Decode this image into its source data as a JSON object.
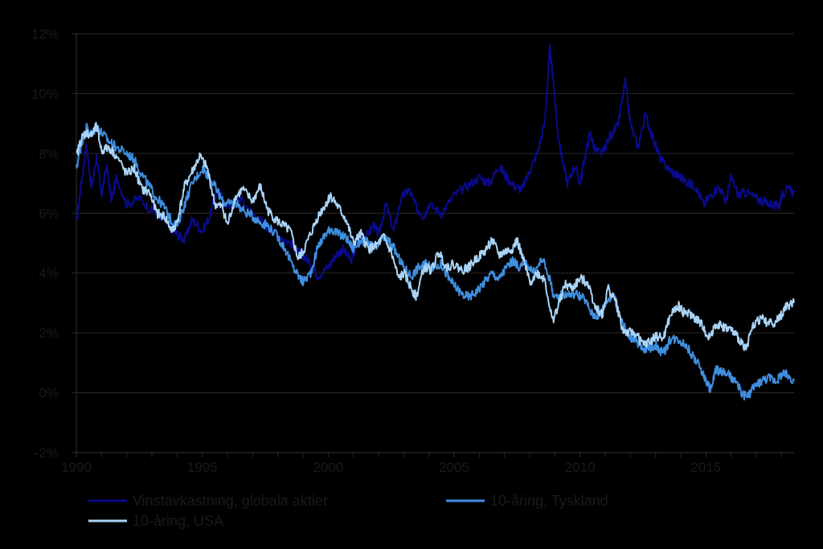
{
  "chart_data": {
    "type": "line",
    "title": "",
    "xlabel": "",
    "ylabel": "",
    "xlim": [
      1990,
      2018.5
    ],
    "ylim": [
      -2,
      12
    ],
    "grid": "horizontal",
    "legend_position": "bottom",
    "x_ticks": [
      "1990",
      "1995",
      "2000",
      "2005",
      "2010",
      "2015"
    ],
    "y_ticks": [
      "-2%",
      "0%",
      "2%",
      "4%",
      "6%",
      "8%",
      "10%",
      "12%"
    ],
    "y_tick_values": [
      -2,
      0,
      2,
      4,
      6,
      8,
      10,
      12
    ],
    "x_tick_values": [
      1990,
      1995,
      2000,
      2005,
      2010,
      2015
    ],
    "series": [
      {
        "name": "Vinstavkastning, globala aktier",
        "color": "#0a0a8c",
        "points": [
          [
            1990.0,
            5.7
          ],
          [
            1990.2,
            7.0
          ],
          [
            1990.4,
            8.3
          ],
          [
            1990.6,
            6.8
          ],
          [
            1990.8,
            7.9
          ],
          [
            1991.0,
            6.6
          ],
          [
            1991.2,
            7.6
          ],
          [
            1991.4,
            6.4
          ],
          [
            1991.6,
            7.2
          ],
          [
            1992.0,
            6.3
          ],
          [
            1992.5,
            6.5
          ],
          [
            1993.0,
            6.1
          ],
          [
            1993.5,
            5.8
          ],
          [
            1993.8,
            5.5
          ],
          [
            1994.0,
            5.3
          ],
          [
            1994.3,
            5.1
          ],
          [
            1994.6,
            5.8
          ],
          [
            1995.0,
            5.4
          ],
          [
            1995.3,
            5.9
          ],
          [
            1995.6,
            6.8
          ],
          [
            1996.0,
            6.2
          ],
          [
            1996.5,
            6.5
          ],
          [
            1997.0,
            6.0
          ],
          [
            1997.5,
            5.6
          ],
          [
            1998.0,
            5.3
          ],
          [
            1998.5,
            5.0
          ],
          [
            1998.8,
            4.7
          ],
          [
            1999.0,
            4.6
          ],
          [
            1999.3,
            4.3
          ],
          [
            1999.6,
            3.9
          ],
          [
            2000.0,
            4.2
          ],
          [
            2000.3,
            4.6
          ],
          [
            2000.6,
            4.8
          ],
          [
            2000.9,
            4.4
          ],
          [
            2001.2,
            5.0
          ],
          [
            2001.5,
            5.2
          ],
          [
            2001.8,
            5.6
          ],
          [
            2002.0,
            5.3
          ],
          [
            2002.3,
            6.3
          ],
          [
            2002.6,
            5.4
          ],
          [
            2002.9,
            6.5
          ],
          [
            2003.2,
            6.8
          ],
          [
            2003.5,
            6.2
          ],
          [
            2003.8,
            5.9
          ],
          [
            2004.0,
            6.3
          ],
          [
            2004.5,
            6.0
          ],
          [
            2005.0,
            6.6
          ],
          [
            2005.5,
            6.9
          ],
          [
            2006.0,
            7.2
          ],
          [
            2006.4,
            7.0
          ],
          [
            2006.8,
            7.6
          ],
          [
            2007.0,
            7.3
          ],
          [
            2007.4,
            6.9
          ],
          [
            2007.7,
            6.8
          ],
          [
            2008.0,
            7.4
          ],
          [
            2008.3,
            8.0
          ],
          [
            2008.6,
            9.0
          ],
          [
            2008.8,
            11.5
          ],
          [
            2008.95,
            10.4
          ],
          [
            2009.1,
            8.8
          ],
          [
            2009.3,
            7.8
          ],
          [
            2009.5,
            7.0
          ],
          [
            2009.8,
            7.6
          ],
          [
            2010.0,
            7.0
          ],
          [
            2010.2,
            7.9
          ],
          [
            2010.4,
            8.7
          ],
          [
            2010.6,
            8.1
          ],
          [
            2010.9,
            8.0
          ],
          [
            2011.2,
            8.6
          ],
          [
            2011.5,
            8.9
          ],
          [
            2011.8,
            10.4
          ],
          [
            2012.0,
            9.0
          ],
          [
            2012.3,
            8.2
          ],
          [
            2012.6,
            9.3
          ],
          [
            2012.9,
            8.5
          ],
          [
            2013.2,
            7.8
          ],
          [
            2013.5,
            7.5
          ],
          [
            2013.8,
            7.3
          ],
          [
            2014.0,
            7.2
          ],
          [
            2014.3,
            7.0
          ],
          [
            2014.6,
            6.9
          ],
          [
            2014.9,
            6.3
          ],
          [
            2015.2,
            6.6
          ],
          [
            2015.5,
            6.9
          ],
          [
            2015.8,
            6.4
          ],
          [
            2016.0,
            7.2
          ],
          [
            2016.3,
            6.6
          ],
          [
            2016.6,
            6.7
          ],
          [
            2017.0,
            6.5
          ],
          [
            2017.3,
            6.4
          ],
          [
            2017.6,
            6.3
          ],
          [
            2017.9,
            6.2
          ],
          [
            2018.0,
            6.6
          ],
          [
            2018.2,
            6.8
          ],
          [
            2018.5,
            6.7
          ]
        ]
      },
      {
        "name": "10-åring, Tyskland",
        "color": "#3f8fe0",
        "points": [
          [
            1990.0,
            7.5
          ],
          [
            1990.2,
            8.3
          ],
          [
            1990.4,
            8.9
          ],
          [
            1990.6,
            8.6
          ],
          [
            1990.8,
            8.9
          ],
          [
            1991.0,
            8.7
          ],
          [
            1991.3,
            8.4
          ],
          [
            1991.6,
            8.2
          ],
          [
            1992.0,
            8.0
          ],
          [
            1992.3,
            7.8
          ],
          [
            1992.6,
            7.3
          ],
          [
            1992.9,
            6.9
          ],
          [
            1993.2,
            6.5
          ],
          [
            1993.5,
            6.2
          ],
          [
            1993.8,
            5.7
          ],
          [
            1994.0,
            5.6
          ],
          [
            1994.3,
            6.3
          ],
          [
            1994.6,
            7.0
          ],
          [
            1995.0,
            7.5
          ],
          [
            1995.2,
            7.3
          ],
          [
            1995.5,
            6.9
          ],
          [
            1995.8,
            6.4
          ],
          [
            1996.0,
            6.3
          ],
          [
            1996.3,
            6.4
          ],
          [
            1996.6,
            6.1
          ],
          [
            1997.0,
            5.9
          ],
          [
            1997.3,
            5.7
          ],
          [
            1997.6,
            5.6
          ],
          [
            1998.0,
            5.2
          ],
          [
            1998.3,
            4.8
          ],
          [
            1998.6,
            4.2
          ],
          [
            1998.9,
            3.8
          ],
          [
            1999.0,
            3.7
          ],
          [
            1999.3,
            4.0
          ],
          [
            1999.6,
            4.9
          ],
          [
            1999.9,
            5.3
          ],
          [
            2000.1,
            5.5
          ],
          [
            2000.4,
            5.3
          ],
          [
            2000.7,
            5.2
          ],
          [
            2001.0,
            4.8
          ],
          [
            2001.3,
            5.1
          ],
          [
            2001.6,
            5.0
          ],
          [
            2001.9,
            4.8
          ],
          [
            2002.2,
            5.2
          ],
          [
            2002.5,
            5.0
          ],
          [
            2002.8,
            4.5
          ],
          [
            2003.0,
            4.2
          ],
          [
            2003.3,
            3.9
          ],
          [
            2003.6,
            4.2
          ],
          [
            2003.9,
            4.3
          ],
          [
            2004.2,
            4.2
          ],
          [
            2004.5,
            4.3
          ],
          [
            2004.8,
            3.8
          ],
          [
            2005.0,
            3.6
          ],
          [
            2005.3,
            3.3
          ],
          [
            2005.6,
            3.2
          ],
          [
            2005.9,
            3.4
          ],
          [
            2006.2,
            3.7
          ],
          [
            2006.5,
            4.0
          ],
          [
            2006.8,
            3.8
          ],
          [
            2007.0,
            4.1
          ],
          [
            2007.3,
            4.4
          ],
          [
            2007.6,
            4.2
          ],
          [
            2007.9,
            4.3
          ],
          [
            2008.2,
            4.0
          ],
          [
            2008.5,
            4.5
          ],
          [
            2008.8,
            3.8
          ],
          [
            2009.0,
            3.1
          ],
          [
            2009.3,
            3.3
          ],
          [
            2009.6,
            3.3
          ],
          [
            2009.9,
            3.3
          ],
          [
            2010.2,
            3.1
          ],
          [
            2010.5,
            2.6
          ],
          [
            2010.8,
            2.6
          ],
          [
            2011.0,
            3.0
          ],
          [
            2011.3,
            3.3
          ],
          [
            2011.6,
            2.6
          ],
          [
            2011.9,
            1.9
          ],
          [
            2012.2,
            1.8
          ],
          [
            2012.5,
            1.4
          ],
          [
            2012.8,
            1.5
          ],
          [
            2013.0,
            1.6
          ],
          [
            2013.3,
            1.3
          ],
          [
            2013.6,
            1.8
          ],
          [
            2013.9,
            1.8
          ],
          [
            2014.2,
            1.6
          ],
          [
            2014.5,
            1.2
          ],
          [
            2014.8,
            0.8
          ],
          [
            2015.0,
            0.4
          ],
          [
            2015.2,
            0.1
          ],
          [
            2015.4,
            0.8
          ],
          [
            2015.6,
            0.7
          ],
          [
            2015.9,
            0.6
          ],
          [
            2016.2,
            0.3
          ],
          [
            2016.5,
            -0.1
          ],
          [
            2016.7,
            -0.1
          ],
          [
            2016.9,
            0.2
          ],
          [
            2017.2,
            0.4
          ],
          [
            2017.5,
            0.5
          ],
          [
            2017.8,
            0.4
          ],
          [
            2018.0,
            0.6
          ],
          [
            2018.2,
            0.6
          ],
          [
            2018.5,
            0.4
          ]
        ]
      },
      {
        "name": "10-åring, USA",
        "color": "#a9d4f7",
        "points": [
          [
            1990.0,
            7.9
          ],
          [
            1990.2,
            8.5
          ],
          [
            1990.4,
            8.7
          ],
          [
            1990.6,
            8.6
          ],
          [
            1990.8,
            8.9
          ],
          [
            1991.0,
            8.1
          ],
          [
            1991.3,
            8.2
          ],
          [
            1991.6,
            7.9
          ],
          [
            1992.0,
            7.3
          ],
          [
            1992.3,
            7.5
          ],
          [
            1992.6,
            6.8
          ],
          [
            1992.9,
            6.7
          ],
          [
            1993.2,
            6.0
          ],
          [
            1993.5,
            5.9
          ],
          [
            1993.8,
            5.4
          ],
          [
            1994.0,
            5.7
          ],
          [
            1994.3,
            6.9
          ],
          [
            1994.6,
            7.4
          ],
          [
            1994.9,
            7.9
          ],
          [
            1995.2,
            7.5
          ],
          [
            1995.5,
            6.3
          ],
          [
            1995.8,
            6.2
          ],
          [
            1996.0,
            5.6
          ],
          [
            1996.3,
            6.5
          ],
          [
            1996.6,
            6.8
          ],
          [
            1997.0,
            6.4
          ],
          [
            1997.3,
            6.9
          ],
          [
            1997.6,
            6.1
          ],
          [
            1997.9,
            5.8
          ],
          [
            1998.2,
            5.6
          ],
          [
            1998.5,
            5.4
          ],
          [
            1998.8,
            4.5
          ],
          [
            1999.0,
            4.7
          ],
          [
            1999.3,
            5.3
          ],
          [
            1999.6,
            5.9
          ],
          [
            1999.9,
            6.3
          ],
          [
            2000.1,
            6.6
          ],
          [
            2000.4,
            6.2
          ],
          [
            2000.7,
            5.8
          ],
          [
            2001.0,
            5.0
          ],
          [
            2001.3,
            5.3
          ],
          [
            2001.6,
            4.8
          ],
          [
            2001.9,
            4.9
          ],
          [
            2002.2,
            5.2
          ],
          [
            2002.5,
            4.7
          ],
          [
            2002.8,
            3.8
          ],
          [
            2003.0,
            4.0
          ],
          [
            2003.3,
            3.5
          ],
          [
            2003.5,
            3.2
          ],
          [
            2003.8,
            4.2
          ],
          [
            2004.1,
            4.1
          ],
          [
            2004.4,
            4.7
          ],
          [
            2004.7,
            4.2
          ],
          [
            2005.0,
            4.3
          ],
          [
            2005.3,
            4.1
          ],
          [
            2005.6,
            4.2
          ],
          [
            2005.9,
            4.5
          ],
          [
            2006.2,
            4.7
          ],
          [
            2006.5,
            5.1
          ],
          [
            2006.8,
            4.6
          ],
          [
            2007.0,
            4.7
          ],
          [
            2007.3,
            4.8
          ],
          [
            2007.5,
            5.1
          ],
          [
            2007.8,
            4.3
          ],
          [
            2008.0,
            3.7
          ],
          [
            2008.3,
            4.0
          ],
          [
            2008.6,
            3.8
          ],
          [
            2008.9,
            2.4
          ],
          [
            2009.1,
            2.8
          ],
          [
            2009.4,
            3.6
          ],
          [
            2009.7,
            3.5
          ],
          [
            2010.0,
            3.8
          ],
          [
            2010.3,
            3.7
          ],
          [
            2010.6,
            2.9
          ],
          [
            2010.9,
            2.6
          ],
          [
            2011.1,
            3.5
          ],
          [
            2011.4,
            3.1
          ],
          [
            2011.7,
            2.1
          ],
          [
            2011.9,
            2.0
          ],
          [
            2012.2,
            2.0
          ],
          [
            2012.5,
            1.6
          ],
          [
            2012.8,
            1.7
          ],
          [
            2013.0,
            1.9
          ],
          [
            2013.3,
            1.8
          ],
          [
            2013.6,
            2.6
          ],
          [
            2013.9,
            2.9
          ],
          [
            2014.1,
            2.7
          ],
          [
            2014.4,
            2.6
          ],
          [
            2014.7,
            2.4
          ],
          [
            2014.9,
            2.2
          ],
          [
            2015.1,
            1.8
          ],
          [
            2015.4,
            2.3
          ],
          [
            2015.7,
            2.2
          ],
          [
            2016.0,
            2.1
          ],
          [
            2016.3,
            1.8
          ],
          [
            2016.6,
            1.5
          ],
          [
            2016.9,
            2.3
          ],
          [
            2017.2,
            2.5
          ],
          [
            2017.5,
            2.3
          ],
          [
            2017.8,
            2.4
          ],
          [
            2018.0,
            2.6
          ],
          [
            2018.2,
            2.9
          ],
          [
            2018.5,
            3.0
          ]
        ]
      }
    ]
  }
}
